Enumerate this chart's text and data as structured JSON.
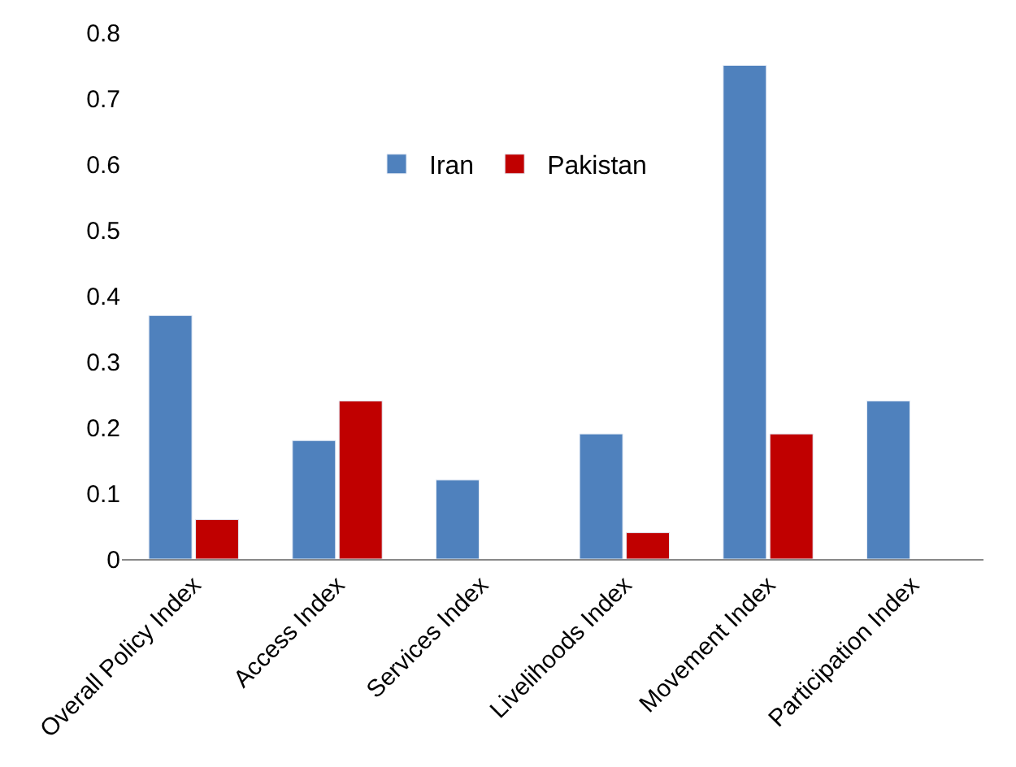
{
  "chart_data": {
    "type": "bar",
    "categories": [
      "Overall Policy Index",
      "Access Index",
      "Services Index",
      "Livelihoods Index",
      "Movement Index",
      "Participation Index"
    ],
    "series": [
      {
        "name": "Iran",
        "color": "#4f81bd",
        "values": [
          0.37,
          0.18,
          0.12,
          0.19,
          0.75,
          0.24
        ]
      },
      {
        "name": "Pakistan",
        "color": "#c00000",
        "values": [
          0.06,
          0.24,
          null,
          0.04,
          0.19,
          null
        ]
      }
    ],
    "ylim": [
      0,
      0.8
    ],
    "yticks": [
      {
        "value": 0,
        "label": "0"
      },
      0.1,
      0.2,
      0.3,
      0.4,
      0.5,
      0.6,
      0.7,
      0.8
    ],
    "legend": "top"
  }
}
